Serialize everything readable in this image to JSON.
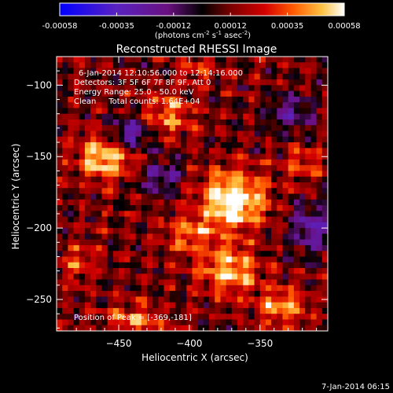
{
  "colorbar": {
    "ticks": [
      "-0.00058",
      "-0.00035",
      "-0.00012",
      "0.00012",
      "0.00035",
      "0.00058"
    ],
    "units_prefix": "(photons cm",
    "units_exp1": "-2",
    "units_mid": " s",
    "units_exp2": "-1",
    "units_mid2": " asec",
    "units_exp3": "-2",
    "units_suffix": ")"
  },
  "title": "Reconstructed RHESSI Image",
  "annotations": {
    "time_range": "6-Jan-2014 12:10:56.000 to 12:14:16.000",
    "detectors": "Detectors: 3F 5F 6F 7F 8F 9F, Att 0",
    "energy": "Energy Range: 25.0 - 50.0 keV",
    "clean": "Clean     Total counts: 1.64E+04",
    "peak": "Position of Peak = [-369,-181]"
  },
  "footer": {
    "date": "7-Jan-2014 06:15"
  },
  "chart_data": {
    "type": "heatmap",
    "title": "Reconstructed RHESSI Image",
    "xlabel": "Heliocentric X (arcsec)",
    "ylabel": "Heliocentric Y (arcsec)",
    "xlim": [
      -494,
      -302
    ],
    "ylim": [
      -272,
      -80
    ],
    "xticks": [
      -450,
      -400,
      -350
    ],
    "yticks": [
      -100,
      -150,
      -200,
      -250
    ],
    "color_range": [
      -0.00058,
      0.00058
    ],
    "peak_position": [
      -369,
      -181
    ],
    "blobs": [
      {
        "x": -369,
        "y": -181,
        "amp": 1.0,
        "sx": 16,
        "sy": 14
      },
      {
        "x": -458,
        "y": -150,
        "amp": 0.82,
        "sx": 14,
        "sy": 11
      },
      {
        "x": -415,
        "y": -120,
        "amp": 0.55,
        "sx": 12,
        "sy": 10
      },
      {
        "x": -372,
        "y": -230,
        "amp": 0.7,
        "sx": 14,
        "sy": 12
      },
      {
        "x": -335,
        "y": -255,
        "amp": 0.6,
        "sx": 11,
        "sy": 9
      },
      {
        "x": -440,
        "y": -265,
        "amp": 0.5,
        "sx": 14,
        "sy": 8
      },
      {
        "x": -400,
        "y": -205,
        "amp": 0.45,
        "sx": 12,
        "sy": 10
      },
      {
        "x": -480,
        "y": -225,
        "amp": 0.35,
        "sx": 10,
        "sy": 10
      },
      {
        "x": -318,
        "y": -155,
        "amp": 0.35,
        "sx": 10,
        "sy": 10
      },
      {
        "x": -392,
        "y": -90,
        "amp": 0.3,
        "sx": 10,
        "sy": 8
      },
      {
        "x": -442,
        "y": -135,
        "amp": -0.75,
        "sx": 11,
        "sy": 8
      },
      {
        "x": -420,
        "y": -165,
        "amp": -0.55,
        "sx": 11,
        "sy": 8
      },
      {
        "x": -312,
        "y": -200,
        "amp": -0.6,
        "sx": 12,
        "sy": 12
      },
      {
        "x": -330,
        "y": -120,
        "amp": -0.45,
        "sx": 12,
        "sy": 10
      },
      {
        "x": -340,
        "y": -290,
        "amp": -0.3,
        "sx": 12,
        "sy": 8
      }
    ]
  }
}
